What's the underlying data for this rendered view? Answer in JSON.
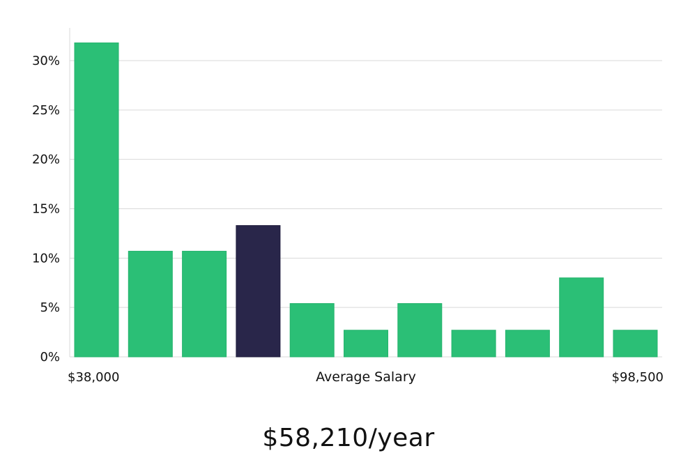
{
  "chart_data": {
    "type": "bar",
    "xlabel": "Average Salary",
    "x_range_labels": [
      "$38,000",
      "$98,500"
    ],
    "ylabel": "",
    "yticks": [
      "0%",
      "5%",
      "10%",
      "15%",
      "20%",
      "25%",
      "30%"
    ],
    "ylim": [
      0,
      0.33
    ],
    "grid": true,
    "values": [
      0.318,
      0.107,
      0.107,
      0.133,
      0.054,
      0.027,
      0.054,
      0.027,
      0.027,
      0.08,
      0.027
    ],
    "highlight_index": 3,
    "colors": {
      "bar": "#2bbf76",
      "highlight": "#29264a",
      "grid": "#d9d9d9"
    }
  },
  "summary": {
    "average_salary_label": "$58,210/year"
  }
}
